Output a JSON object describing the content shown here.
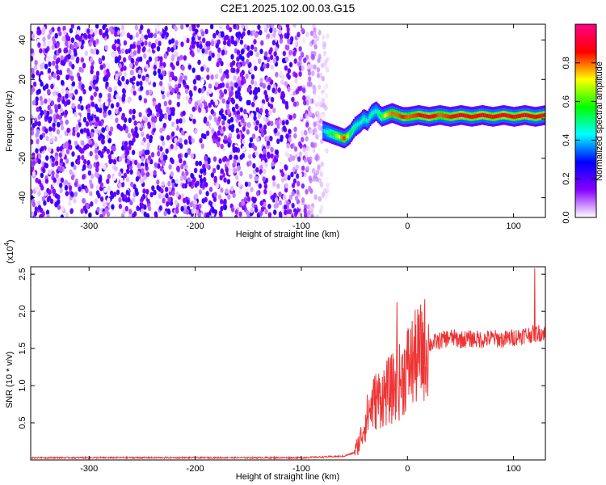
{
  "title": "C2E1.2025.102.00.03.G15",
  "chart_data": [
    {
      "type": "heatmap",
      "xlabel": "Height of straight line (km)",
      "ylabel": "Frequency (Hz)",
      "xlim": [
        -355,
        130
      ],
      "ylim": [
        -50,
        48
      ],
      "x_ticks": [
        -300,
        -200,
        -100,
        0,
        100
      ],
      "y_ticks": [
        -40,
        -20,
        0,
        20,
        40
      ],
      "colorbar": {
        "label": "Normalized spectral amplitude",
        "range": [
          0,
          1
        ],
        "ticks": [
          0.0,
          0.2,
          0.4,
          0.6,
          0.8
        ],
        "tick_labels": [
          "0.0",
          "0.2",
          "0.4",
          "0.6",
          "0.8"
        ],
        "colors": [
          "#ffffff",
          "#8800ff",
          "#0000ff",
          "#00ffff",
          "#00ff00",
          "#ffff00",
          "#ff0000",
          "#ff0088"
        ]
      },
      "noise_region": {
        "x_range": [
          -355,
          -75
        ],
        "y_range": [
          -50,
          48
        ],
        "amplitude_range": [
          0.0,
          0.25
        ]
      },
      "ridge": {
        "x": [
          -80,
          -75,
          -70,
          -65,
          -60,
          -55,
          -50,
          -45,
          -42,
          -38,
          -35,
          -30,
          -25,
          -20,
          -15,
          -10,
          -5,
          0,
          10,
          20,
          30,
          40,
          50,
          60,
          70,
          80,
          90,
          100,
          110,
          120,
          130
        ],
        "y": [
          -6,
          -7,
          -8,
          -9,
          -10,
          -8,
          -4,
          -2,
          0,
          -1,
          2,
          4,
          1,
          2,
          3,
          2,
          1,
          1,
          2,
          1,
          2,
          1,
          2,
          1,
          2,
          1,
          2,
          1,
          2,
          1,
          2
        ],
        "amplitude": [
          0.4,
          0.5,
          0.6,
          0.7,
          0.85,
          0.6,
          0.5,
          0.45,
          0.5,
          0.45,
          0.5,
          0.45,
          0.6,
          0.75,
          0.8,
          0.8,
          0.85,
          0.8,
          0.85,
          0.9,
          0.8,
          0.85,
          0.9,
          0.85,
          0.9,
          0.85,
          0.9,
          0.85,
          0.9,
          0.85,
          0.9
        ]
      }
    },
    {
      "type": "line",
      "xlabel": "Height of straight line (km)",
      "ylabel": "SNR (10 * v/v)",
      "y_multiplier_label": "(x10",
      "y_multiplier_exp": "4",
      "y_multiplier_close": ")",
      "xlim": [
        -355,
        130
      ],
      "ylim": [
        0,
        2.6
      ],
      "x_ticks": [
        -300,
        -200,
        -100,
        0,
        100
      ],
      "y_ticks": [
        0.5,
        1.0,
        1.5,
        2.0,
        2.5
      ],
      "color": "#ee3333",
      "series": [
        {
          "x": [
            -355,
            -300,
            -250,
            -200,
            -150,
            -100,
            -80,
            -60,
            -50,
            -45,
            -40,
            -35,
            -30,
            -25,
            -20,
            -15,
            -10,
            -5,
            0,
            10,
            20,
            30,
            40,
            50,
            60,
            70,
            80,
            90,
            100,
            110,
            120,
            130
          ],
          "values": [
            0.03,
            0.03,
            0.03,
            0.03,
            0.03,
            0.03,
            0.04,
            0.05,
            0.1,
            0.25,
            0.5,
            0.7,
            0.8,
            0.85,
            0.9,
            0.95,
            1.0,
            1.1,
            1.25,
            1.4,
            1.55,
            1.6,
            1.65,
            1.62,
            1.63,
            1.62,
            1.64,
            1.62,
            1.65,
            1.68,
            1.7,
            1.72
          ]
        }
      ],
      "peaks": [
        {
          "x": -10,
          "y": 2.12
        },
        {
          "x": 120,
          "y": 2.58
        }
      ]
    }
  ]
}
